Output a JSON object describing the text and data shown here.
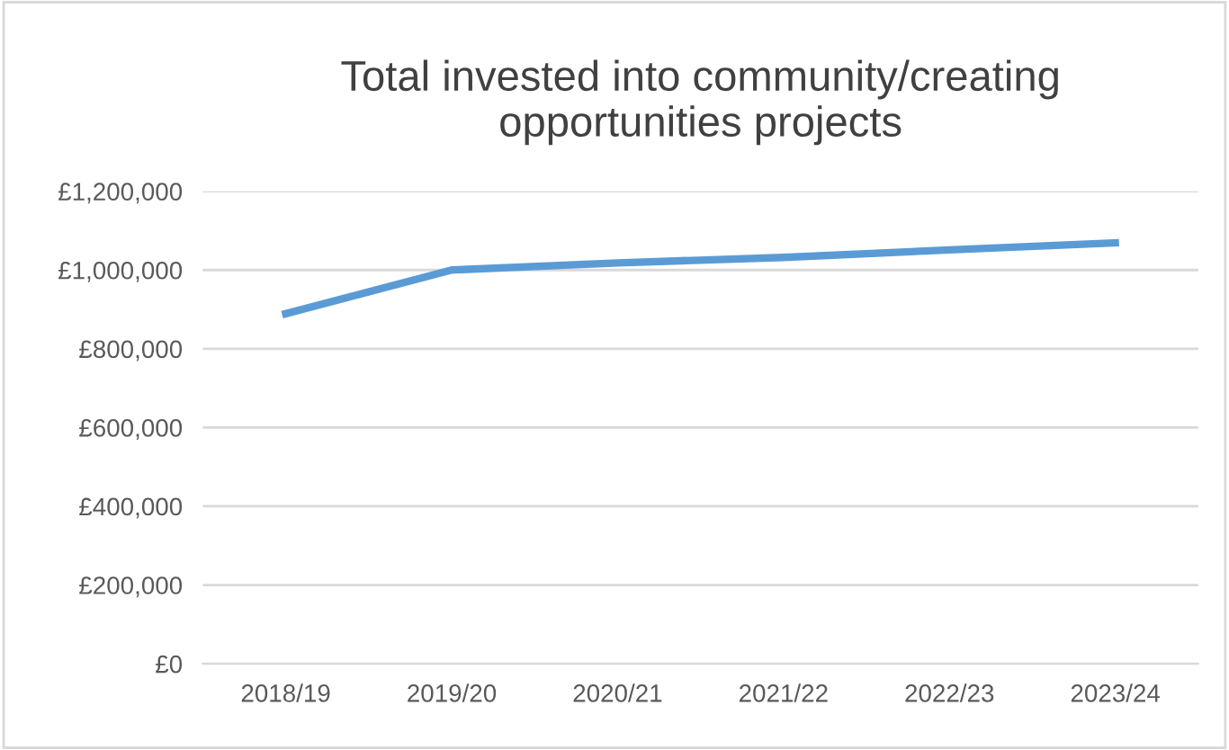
{
  "chart_data": {
    "type": "line",
    "title": "Total invested into community/creating\nopportunities projects",
    "categories": [
      "2018/19",
      "2019/20",
      "2020/21",
      "2021/22",
      "2022/23",
      "2023/24"
    ],
    "series": [
      {
        "color": "#5b9bd5",
        "values": [
          889000,
          1000000,
          1018000,
          1032000,
          1051000,
          1069000
        ]
      }
    ],
    "ylim": [
      0,
      1200000
    ],
    "yticks": [
      {
        "value": 0,
        "label": "£0"
      },
      {
        "value": 200000,
        "label": "£200,000"
      },
      {
        "value": 400000,
        "label": "£400,000"
      },
      {
        "value": 600000,
        "label": "£600,000"
      },
      {
        "value": 800000,
        "label": "£800,000"
      },
      {
        "value": 1000000,
        "label": "£1,000,000"
      },
      {
        "value": 1200000,
        "label": "£1,200,000"
      }
    ],
    "grid": "y",
    "marker": "none",
    "line_style": "solid"
  }
}
